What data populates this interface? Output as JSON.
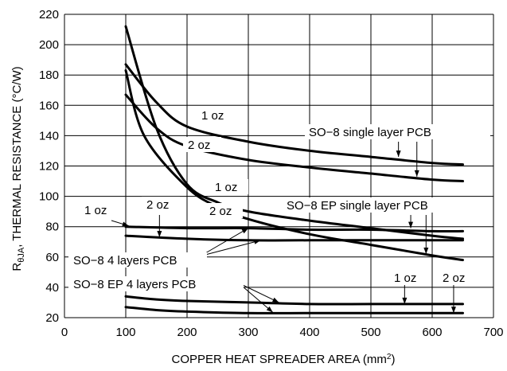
{
  "chart_data": {
    "type": "line",
    "xlabel": "COPPER HEAT SPREADER AREA (mm",
    "xlabel_sup": "2",
    "xlabel_end": ")",
    "ylabel_main": "R",
    "ylabel_sub": "θJA",
    "ylabel_rest": ", THERMAL RESISTANCE (°C/W)",
    "xlim": [
      0,
      700
    ],
    "ylim": [
      20,
      220
    ],
    "x_ticks": [
      "0",
      "100",
      "200",
      "300",
      "400",
      "500",
      "600",
      "700"
    ],
    "y_ticks": [
      "20",
      "40",
      "60",
      "80",
      "100",
      "120",
      "140",
      "160",
      "180",
      "200",
      "220"
    ],
    "grid": true,
    "series": [
      {
        "x": [
          100,
          150,
          200,
          300,
          400,
          500,
          600,
          650
        ],
        "y": [
          187,
          162,
          146,
          136,
          130,
          126,
          122,
          121
        ]
      },
      {
        "x": [
          100,
          150,
          200,
          300,
          400,
          500,
          600,
          650
        ],
        "y": [
          167,
          145,
          133,
          124,
          119,
          115,
          111,
          110
        ]
      },
      {
        "x": [
          100,
          150,
          200,
          250,
          300,
          400,
          500,
          600,
          650
        ],
        "y": [
          212,
          145,
          108,
          96,
          90,
          84,
          79,
          74,
          72
        ]
      },
      {
        "x": [
          100,
          130,
          200,
          250,
          300,
          400,
          500,
          600,
          650
        ],
        "y": [
          183,
          140,
          106,
          93,
          85,
          75,
          68,
          61,
          58
        ]
      },
      {
        "x": [
          100,
          200,
          300,
          400,
          500,
          600,
          650
        ],
        "y": [
          80,
          79,
          79,
          78,
          78,
          77,
          77
        ]
      },
      {
        "x": [
          100,
          200,
          300,
          400,
          500,
          600,
          650
        ],
        "y": [
          74,
          72,
          71,
          71,
          71,
          71,
          71
        ]
      },
      {
        "x": [
          100,
          150,
          200,
          300,
          400,
          500,
          600,
          650
        ],
        "y": [
          34,
          32,
          31,
          30,
          29,
          29,
          29,
          29
        ]
      },
      {
        "x": [
          100,
          150,
          200,
          300,
          400,
          500,
          600,
          650
        ],
        "y": [
          27,
          25,
          24,
          23,
          23,
          23,
          23,
          23
        ]
      }
    ],
    "annotations": {
      "so8_single_1oz": "1 oz",
      "so8_single_2oz": "2 oz",
      "so8_single_label": "SO−8 single layer PCB",
      "so8ep_single_1oz": "1 oz",
      "so8ep_single_2oz": "2 oz",
      "so8ep_single_label": "SO−8 EP single layer PCB",
      "so8_4layer_1oz": "1 oz",
      "so8_4layer_2oz": "2 oz",
      "so8_4layer_label": "SO−8 4 layers PCB",
      "so8ep_4layer_label": "SO−8 EP 4 layers PCB",
      "so8ep_4layer_1oz": "1 oz",
      "so8ep_4layer_2oz": "2 oz"
    }
  }
}
